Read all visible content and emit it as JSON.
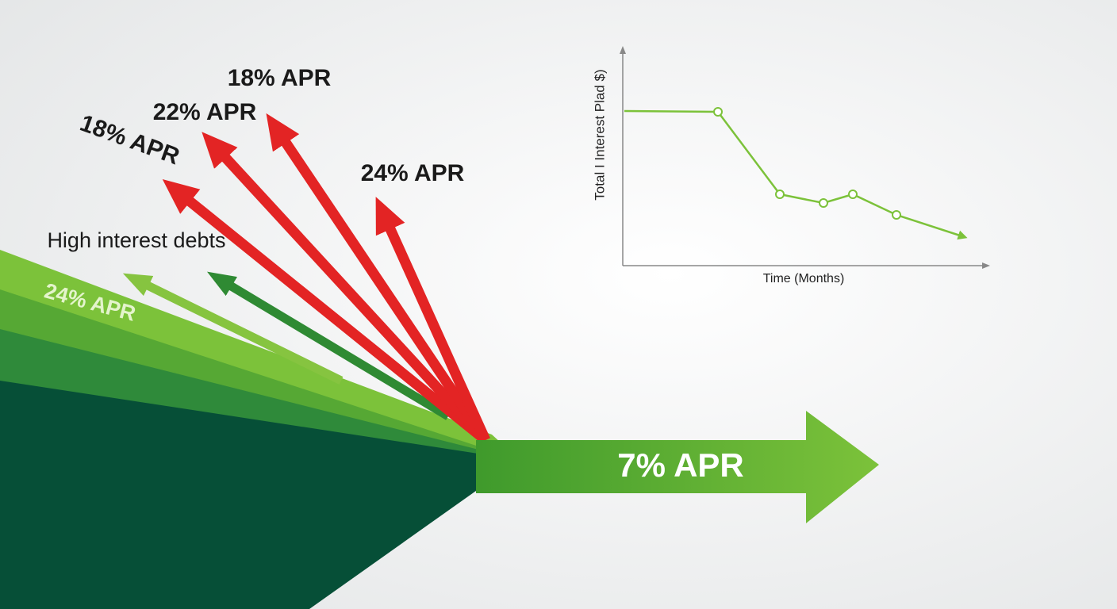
{
  "debt_labels": [
    "18% APR",
    "22% APR",
    "18% APR",
    "24% APR"
  ],
  "group_label": "High interest debts",
  "green_label": "24% APR",
  "result_label": "7% APR",
  "mini_chart": {
    "y_label": "Total I Interest Plad $)",
    "x_label": "Time (Months)"
  }
}
